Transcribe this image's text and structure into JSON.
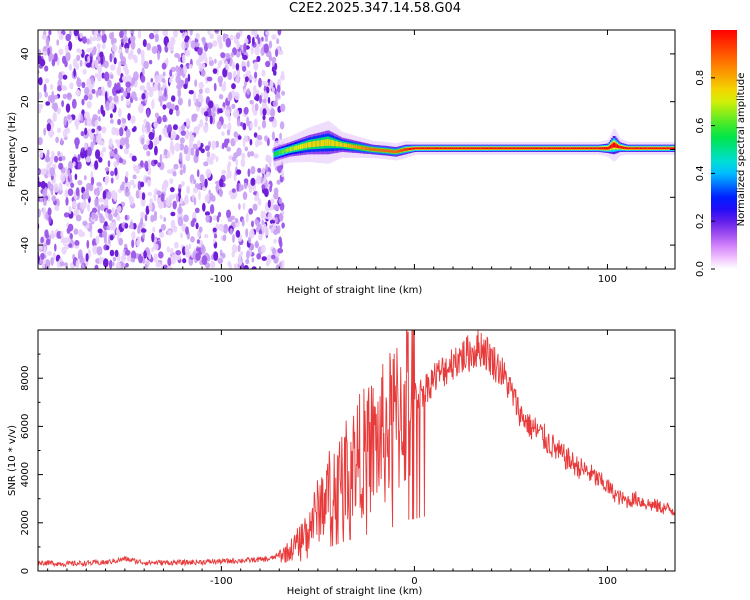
{
  "title": "C2E2.2025.347.14.58.G04",
  "chart_data": [
    {
      "type": "heatmap",
      "xlabel": "Height of straight line (km)",
      "ylabel": "Frequency (Hz)",
      "xlim": [
        -195,
        135
      ],
      "ylim": [
        -50,
        50
      ],
      "xticks": [
        -100,
        0,
        100
      ],
      "xtick_labels": [
        "-100",
        "",
        "100"
      ],
      "yticks": [
        -40,
        -20,
        0,
        20,
        40
      ],
      "ytick_labels": [
        "-40",
        "-20",
        "0",
        "20",
        "40"
      ],
      "noise_region": {
        "x": [
          -195,
          -70
        ],
        "freq": [
          -50,
          50
        ],
        "amplitude": [
          0.05,
          0.25
        ]
      },
      "signal_ridge": {
        "x": [
          -73,
          -65,
          -55,
          -45,
          -38,
          -30,
          -22,
          -15,
          -10,
          -5,
          0,
          20,
          50,
          80,
          95,
          100,
          103,
          106,
          110,
          135
        ],
        "freq": [
          -2,
          0,
          2,
          3,
          2,
          1,
          0,
          -0.5,
          -1,
          0,
          0.5,
          0.5,
          0.5,
          0.5,
          0.5,
          0.5,
          2,
          1,
          0.5,
          0.5
        ],
        "halfwidth": [
          3,
          3,
          4,
          5,
          3,
          2.5,
          2,
          2,
          2,
          2,
          1.5,
          1.5,
          1.5,
          1.5,
          1.5,
          2,
          4,
          2,
          1.5,
          1.5
        ],
        "amplitude": [
          0.3,
          0.5,
          0.6,
          0.6,
          0.6,
          0.7,
          0.8,
          0.8,
          0.8,
          0.9,
          1,
          1,
          1,
          1,
          1,
          1,
          1,
          1,
          1,
          1
        ]
      },
      "colorbar": {
        "label": "Normalized spectral amplitude",
        "range": [
          0,
          1
        ],
        "ticks": [
          0.0,
          0.2,
          0.4,
          0.6,
          0.8
        ],
        "tick_labels": [
          "0.0",
          "0.2",
          "0.4",
          "0.6",
          "0.8"
        ],
        "colors": [
          "#ffffff",
          "#ff00ff",
          "#0000ff",
          "#00ffff",
          "#00ff00",
          "#ffff00",
          "#ff0000"
        ]
      },
      "grid": false
    },
    {
      "type": "line",
      "xlabel": "Height of straight line (km)",
      "ylabel": "SNR (10 * v/v)",
      "xlim": [
        -195,
        135
      ],
      "ylim": [
        0,
        10000
      ],
      "xticks": [
        -100,
        0,
        100
      ],
      "xtick_labels": [
        "-100",
        "0",
        "100"
      ],
      "yticks": [
        0,
        2000,
        4000,
        6000,
        8000
      ],
      "ytick_labels": [
        "0",
        "2000",
        "4000",
        "6000",
        "8000"
      ],
      "series": [
        {
          "color": "#e83a3a",
          "x": [
            -195,
            -180,
            -160,
            -150,
            -140,
            -120,
            -100,
            -85,
            -75,
            -65,
            -60,
            -55,
            -50,
            -45,
            -40,
            -35,
            -30,
            -25,
            -20,
            -15,
            -10,
            -5,
            0,
            5,
            10,
            15,
            20,
            25,
            30,
            35,
            40,
            45,
            50,
            55,
            60,
            65,
            70,
            75,
            80,
            85,
            90,
            95,
            100,
            105,
            110,
            115,
            120,
            125,
            130,
            135
          ],
          "y": [
            350,
            300,
            350,
            500,
            350,
            350,
            400,
            450,
            500,
            800,
            1200,
            1800,
            2500,
            3200,
            3700,
            4200,
            4700,
            5000,
            5300,
            5700,
            6200,
            7000,
            7200,
            7500,
            8000,
            8300,
            8700,
            8900,
            9100,
            9300,
            8800,
            8300,
            7500,
            6500,
            6000,
            5700,
            5300,
            4900,
            4600,
            4300,
            4100,
            3800,
            3500,
            3100,
            2900,
            3000,
            2800,
            2700,
            2600,
            2500
          ]
        }
      ],
      "grid": false
    }
  ]
}
